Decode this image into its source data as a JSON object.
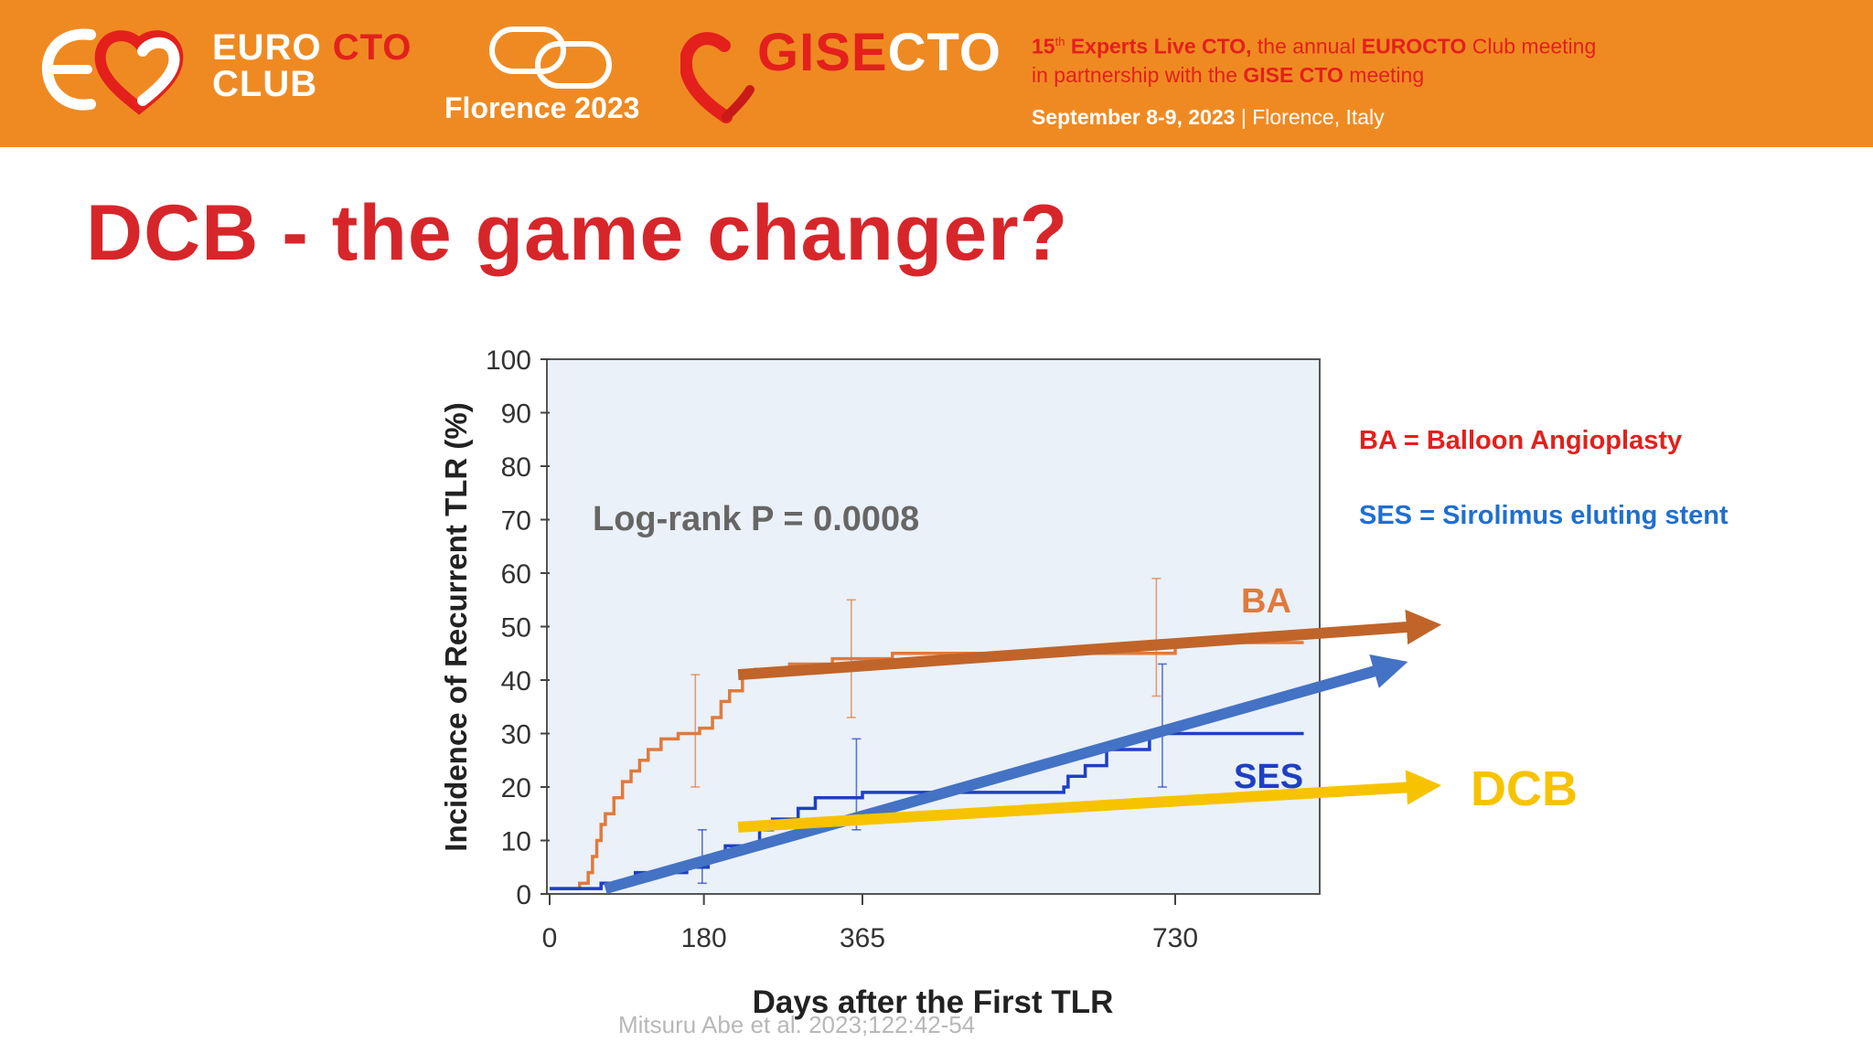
{
  "header": {
    "euro_line1": "EURO",
    "euro_cto": "CTO",
    "euro_line2": "CLUB",
    "florence": "Florence 2023",
    "gise": "GISE",
    "gise_cto": "CTO",
    "meeting_prefix": "15",
    "meeting_sup": "th",
    "meeting_bold1": "Experts Live CTO,",
    "meeting_mid1": "the annual",
    "meeting_bold2": "EUROCTO",
    "meeting_mid2": "Club meeting",
    "meeting_line2_a": "in partnership with the",
    "meeting_bold3": "GISE CTO",
    "meeting_line2_b": "meeting",
    "date_bold": "September 8-9, 2023",
    "date_rest": "| Florence, Italy",
    "colors": {
      "banner": "#ef8a22",
      "red": "#e3201c"
    }
  },
  "slide": {
    "title": "DCB - the game changer?",
    "def_ba": "BA = Balloon Angioplasty",
    "def_ses": "SES = Sirolimus eluting stent",
    "dcb_label": "DCB",
    "citation": "Mitsuru Abe et al. 2023;122:42-54"
  },
  "chart_data": {
    "type": "line",
    "title": "",
    "xlabel": "Days after the First TLR",
    "ylabel": "Incidence of Recurrent TLR (%)",
    "xlim": [
      0,
      880
    ],
    "ylim": [
      0,
      100
    ],
    "x_ticks": [
      0,
      180,
      365,
      730
    ],
    "x_tick_labels": [
      "0",
      "180",
      "365",
      "730"
    ],
    "y_ticks": [
      0,
      10,
      20,
      30,
      40,
      50,
      60,
      70,
      80,
      90,
      100
    ],
    "annotation": "Log-rank P = 0.0008",
    "series": [
      {
        "name": "BA",
        "color": "#e07a3c",
        "points": [
          [
            0,
            1
          ],
          [
            30,
            1
          ],
          [
            35,
            2
          ],
          [
            45,
            4
          ],
          [
            50,
            7
          ],
          [
            55,
            10
          ],
          [
            60,
            13
          ],
          [
            65,
            15
          ],
          [
            75,
            18
          ],
          [
            85,
            21
          ],
          [
            95,
            23
          ],
          [
            105,
            25
          ],
          [
            115,
            27
          ],
          [
            130,
            29
          ],
          [
            150,
            30
          ],
          [
            175,
            31
          ],
          [
            190,
            33
          ],
          [
            200,
            36
          ],
          [
            210,
            38
          ],
          [
            225,
            41
          ],
          [
            240,
            42
          ],
          [
            280,
            43
          ],
          [
            330,
            44
          ],
          [
            365,
            44
          ],
          [
            400,
            45
          ],
          [
            650,
            45
          ],
          [
            730,
            47
          ],
          [
            880,
            47
          ]
        ],
        "error_bars": [
          {
            "x": 170,
            "lo": 20,
            "hi": 41
          },
          {
            "x": 352,
            "lo": 33,
            "hi": 55
          },
          {
            "x": 708,
            "lo": 37,
            "hi": 59
          }
        ]
      },
      {
        "name": "SES",
        "color": "#1f3fc4",
        "points": [
          [
            0,
            1
          ],
          [
            60,
            2
          ],
          [
            100,
            4
          ],
          [
            160,
            5
          ],
          [
            185,
            7
          ],
          [
            205,
            9
          ],
          [
            245,
            12
          ],
          [
            260,
            14
          ],
          [
            290,
            16
          ],
          [
            310,
            18
          ],
          [
            365,
            19
          ],
          [
            600,
            20
          ],
          [
            605,
            22
          ],
          [
            625,
            24
          ],
          [
            650,
            27
          ],
          [
            700,
            30
          ],
          [
            880,
            30
          ]
        ],
        "error_bars": [
          {
            "x": 178,
            "lo": 2,
            "hi": 12
          },
          {
            "x": 358,
            "lo": 12,
            "hi": 29
          },
          {
            "x": 715,
            "lo": 20,
            "hi": 43
          }
        ]
      }
    ],
    "arrows": [
      {
        "name": "BA trend",
        "color": "#c0642a",
        "from": [
          220,
          41
        ],
        "to": [
          1008,
          50
        ]
      },
      {
        "name": "SES trend",
        "color": "#4472c4",
        "from": [
          65,
          1
        ],
        "to": [
          970,
          42
        ]
      },
      {
        "name": "DCB",
        "color": "#f7c300",
        "from": [
          220,
          12.5
        ],
        "to": [
          1008,
          20
        ]
      }
    ]
  }
}
